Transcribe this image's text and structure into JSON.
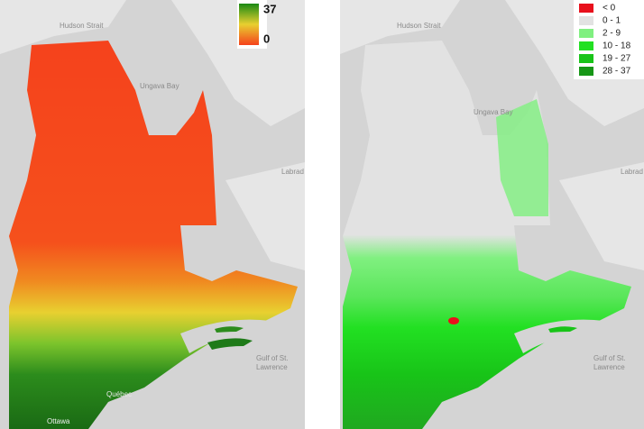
{
  "left_map": {
    "legend": {
      "max": "37",
      "min": "0"
    },
    "labels": {
      "hudson": "Hudson Strait",
      "ungava": "Ungava Bay",
      "labrador": "Labrad",
      "gulf": "Gulf of St.",
      "lawrence": "Lawrence",
      "quebec": "Québec",
      "ottawa": "Ottawa"
    }
  },
  "right_map": {
    "legend": [
      {
        "label": "< 0",
        "color": "#e8101c"
      },
      {
        "label": "0 - 1",
        "color": "#e2e2e2"
      },
      {
        "label": "2 - 9",
        "color": "#80f080"
      },
      {
        "label": "10 - 18",
        "color": "#22e022"
      },
      {
        "label": "19 - 27",
        "color": "#18c418"
      },
      {
        "label": "28 - 37",
        "color": "#169616"
      }
    ],
    "labels": {
      "hudson": "Hudson Strait",
      "ungava": "Ungava Bay",
      "labrador": "Labrad",
      "gulf": "Gulf of St.",
      "lawrence": "Lawrence"
    }
  }
}
